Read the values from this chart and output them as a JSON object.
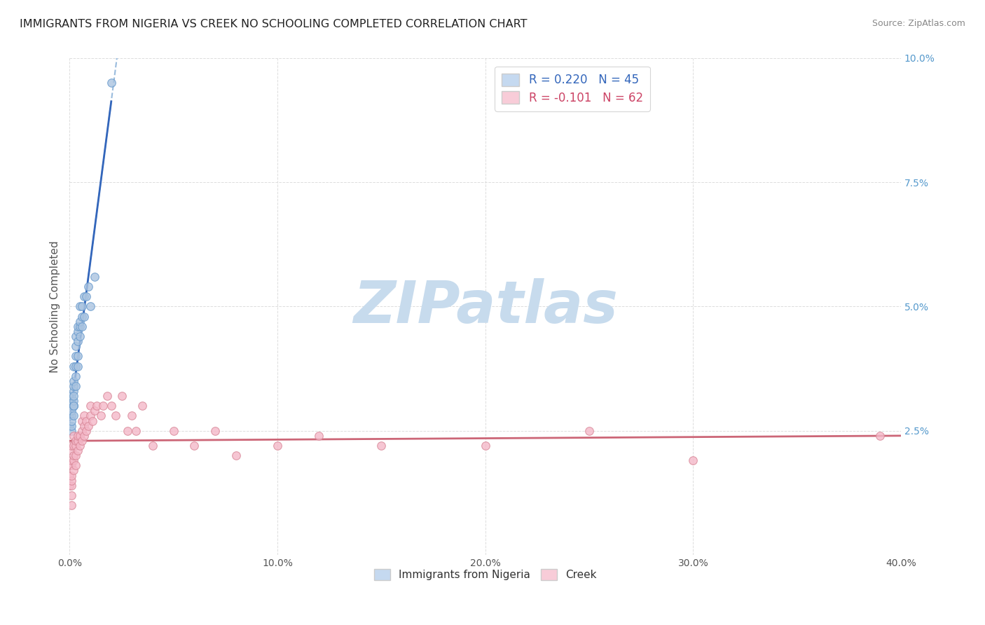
{
  "title": "IMMIGRANTS FROM NIGERIA VS CREEK NO SCHOOLING COMPLETED CORRELATION CHART",
  "source": "Source: ZipAtlas.com",
  "ylabel": "No Schooling Completed",
  "background_color": "#ffffff",
  "grid_color": "#dddddd",
  "watermark_text": "ZIPatlas",
  "watermark_color_r": 0.78,
  "watermark_color_g": 0.86,
  "watermark_color_b": 0.93,
  "series1_color": "#aac4e0",
  "series1_edge": "#6699cc",
  "series2_color": "#f4b8c8",
  "series2_edge": "#d88898",
  "trend1_solid_color": "#3366bb",
  "trend1_dash_color": "#99bbdd",
  "trend2_color": "#cc6677",
  "legend1_face": "#c5d9f0",
  "legend2_face": "#f8ccd8",
  "legend_edge": "#cccccc",
  "legend_text1_color": "#3366bb",
  "legend_text2_color": "#cc4466",
  "nigeria_x": [
    0.0,
    0.0,
    0.001,
    0.001,
    0.001,
    0.001,
    0.001,
    0.001,
    0.001,
    0.001,
    0.002,
    0.002,
    0.002,
    0.002,
    0.002,
    0.002,
    0.002,
    0.002,
    0.002,
    0.002,
    0.003,
    0.003,
    0.003,
    0.003,
    0.003,
    0.003,
    0.004,
    0.004,
    0.004,
    0.004,
    0.004,
    0.005,
    0.005,
    0.005,
    0.005,
    0.006,
    0.006,
    0.006,
    0.007,
    0.007,
    0.008,
    0.009,
    0.01,
    0.012,
    0.02
  ],
  "nigeria_y": [
    0.026,
    0.028,
    0.025,
    0.026,
    0.028,
    0.03,
    0.031,
    0.032,
    0.027,
    0.029,
    0.028,
    0.03,
    0.03,
    0.031,
    0.033,
    0.034,
    0.035,
    0.03,
    0.032,
    0.038,
    0.034,
    0.036,
    0.038,
    0.04,
    0.042,
    0.044,
    0.038,
    0.04,
    0.043,
    0.045,
    0.046,
    0.044,
    0.046,
    0.047,
    0.05,
    0.046,
    0.048,
    0.05,
    0.048,
    0.052,
    0.052,
    0.054,
    0.05,
    0.056,
    0.095
  ],
  "creek_x": [
    0.0,
    0.0,
    0.0,
    0.001,
    0.001,
    0.001,
    0.001,
    0.001,
    0.001,
    0.001,
    0.001,
    0.001,
    0.002,
    0.002,
    0.002,
    0.002,
    0.002,
    0.003,
    0.003,
    0.003,
    0.003,
    0.004,
    0.004,
    0.004,
    0.005,
    0.005,
    0.006,
    0.006,
    0.006,
    0.007,
    0.007,
    0.007,
    0.008,
    0.008,
    0.009,
    0.01,
    0.01,
    0.011,
    0.012,
    0.013,
    0.015,
    0.016,
    0.018,
    0.02,
    0.022,
    0.025,
    0.028,
    0.03,
    0.032,
    0.035,
    0.04,
    0.05,
    0.06,
    0.07,
    0.08,
    0.1,
    0.12,
    0.15,
    0.2,
    0.25,
    0.3,
    0.39
  ],
  "creek_y": [
    0.014,
    0.016,
    0.018,
    0.01,
    0.012,
    0.014,
    0.015,
    0.016,
    0.018,
    0.019,
    0.021,
    0.022,
    0.017,
    0.019,
    0.02,
    0.022,
    0.024,
    0.018,
    0.02,
    0.022,
    0.023,
    0.021,
    0.023,
    0.024,
    0.022,
    0.024,
    0.023,
    0.025,
    0.027,
    0.024,
    0.026,
    0.028,
    0.025,
    0.027,
    0.026,
    0.028,
    0.03,
    0.027,
    0.029,
    0.03,
    0.028,
    0.03,
    0.032,
    0.03,
    0.028,
    0.032,
    0.025,
    0.028,
    0.025,
    0.03,
    0.022,
    0.025,
    0.022,
    0.025,
    0.02,
    0.022,
    0.024,
    0.022,
    0.022,
    0.025,
    0.019,
    0.024
  ],
  "xlim": [
    0.0,
    0.4
  ],
  "ylim": [
    0.0,
    0.1
  ],
  "xticks": [
    0.0,
    0.1,
    0.2,
    0.3,
    0.4
  ],
  "xtick_labels": [
    "0.0%",
    "10.0%",
    "20.0%",
    "30.0%",
    "40.0%"
  ],
  "yticks": [
    0.0,
    0.025,
    0.05,
    0.075,
    0.1
  ],
  "ytick_labels_right": [
    "",
    "2.5%",
    "5.0%",
    "7.5%",
    "10.0%"
  ],
  "right_tick_color": "#5599cc"
}
